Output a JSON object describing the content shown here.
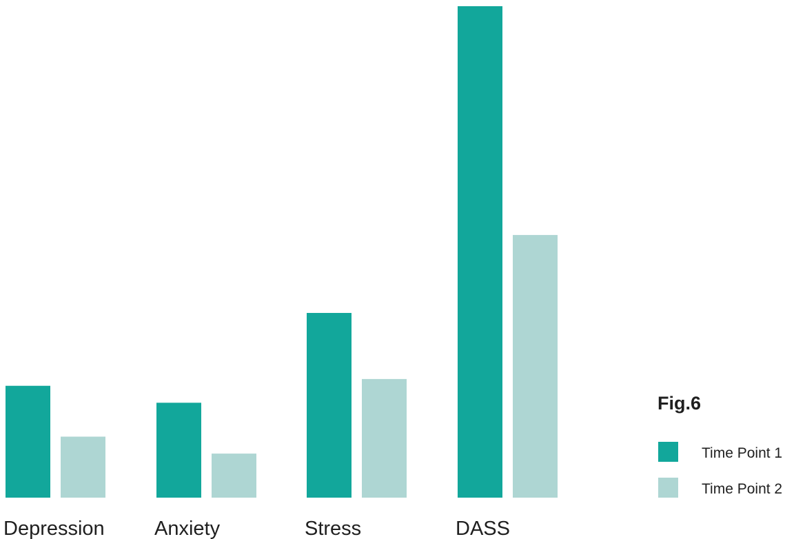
{
  "chart_data": {
    "type": "bar",
    "title": "Fig.6",
    "categories": [
      "Depression",
      "Anxiety",
      "Stress",
      "DASS"
    ],
    "series": [
      {
        "name": "Time Point 1",
        "color": "#12a79b",
        "values": [
          6.6,
          5.6,
          10.9,
          29.0
        ]
      },
      {
        "name": "Time Point 2",
        "color": "#aed6d3",
        "values": [
          3.6,
          2.6,
          7.0,
          15.5
        ]
      }
    ],
    "xlabel": "",
    "ylabel": "",
    "ylim": [
      0,
      29.0
    ],
    "grid": false,
    "legend_position": "right"
  }
}
